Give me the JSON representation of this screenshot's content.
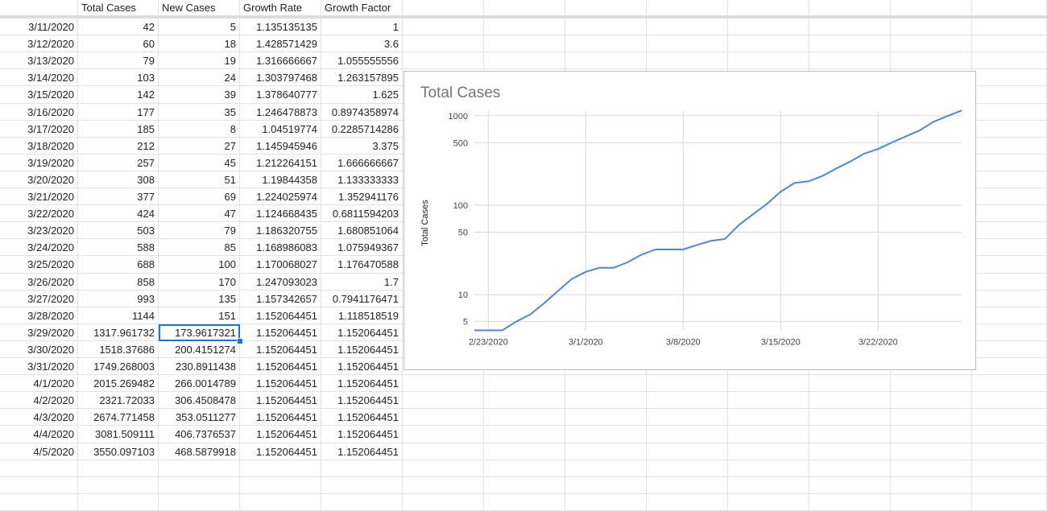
{
  "columns": {
    "headers": [
      "",
      "Total Cases",
      "New Cases",
      "Growth Rate",
      "Growth Factor"
    ]
  },
  "rows": [
    [
      "3/11/2020",
      "42",
      "5",
      "1.135135135",
      "1"
    ],
    [
      "3/12/2020",
      "60",
      "18",
      "1.428571429",
      "3.6"
    ],
    [
      "3/13/2020",
      "79",
      "19",
      "1.316666667",
      "1.055555556"
    ],
    [
      "3/14/2020",
      "103",
      "24",
      "1.303797468",
      "1.263157895"
    ],
    [
      "3/15/2020",
      "142",
      "39",
      "1.378640777",
      "1.625"
    ],
    [
      "3/16/2020",
      "177",
      "35",
      "1.246478873",
      "0.8974358974"
    ],
    [
      "3/17/2020",
      "185",
      "8",
      "1.04519774",
      "0.2285714286"
    ],
    [
      "3/18/2020",
      "212",
      "27",
      "1.145945946",
      "3.375"
    ],
    [
      "3/19/2020",
      "257",
      "45",
      "1.212264151",
      "1.666666667"
    ],
    [
      "3/20/2020",
      "308",
      "51",
      "1.19844358",
      "1.133333333"
    ],
    [
      "3/21/2020",
      "377",
      "69",
      "1.224025974",
      "1.352941176"
    ],
    [
      "3/22/2020",
      "424",
      "47",
      "1.124668435",
      "0.6811594203"
    ],
    [
      "3/23/2020",
      "503",
      "79",
      "1.186320755",
      "1.680851064"
    ],
    [
      "3/24/2020",
      "588",
      "85",
      "1.168986083",
      "1.075949367"
    ],
    [
      "3/25/2020",
      "688",
      "100",
      "1.170068027",
      "1.176470588"
    ],
    [
      "3/26/2020",
      "858",
      "170",
      "1.247093023",
      "1.7"
    ],
    [
      "3/27/2020",
      "993",
      "135",
      "1.157342657",
      "0.7941176471"
    ],
    [
      "3/28/2020",
      "1144",
      "151",
      "1.152064451",
      "1.118518519"
    ],
    [
      "3/29/2020",
      "1317.961732",
      "173.9617321",
      "1.152064451",
      "1.152064451"
    ],
    [
      "3/30/2020",
      "1518.37686",
      "200.4151274",
      "1.152064451",
      "1.152064451"
    ],
    [
      "3/31/2020",
      "1749.268003",
      "230.8911438",
      "1.152064451",
      "1.152064451"
    ],
    [
      "4/1/2020",
      "2015.269482",
      "266.0014789",
      "1.152064451",
      "1.152064451"
    ],
    [
      "4/2/2020",
      "2321.72033",
      "306.4508478",
      "1.152064451",
      "1.152064451"
    ],
    [
      "4/3/2020",
      "2674.771458",
      "353.0511277",
      "1.152064451",
      "1.152064451"
    ],
    [
      "4/4/2020",
      "3081.509111",
      "406.7376537",
      "1.152064451",
      "1.152064451"
    ],
    [
      "4/5/2020",
      "3550.097103",
      "468.5879918",
      "1.152064451",
      "1.152064451"
    ]
  ],
  "selected_cell": {
    "row": 18,
    "col": 2
  },
  "colors": {
    "line": "#4a86e8",
    "grid": "#d9d9d9",
    "selection": "#1a73e8",
    "title": "#757575"
  },
  "chart_data": {
    "type": "line",
    "title": "Total Cases",
    "xlabel": "",
    "ylabel": "Total Cases",
    "y_scale": "log",
    "ylim": [
      4,
      1200
    ],
    "xlim": [
      "2/22/2020",
      "3/28/2020"
    ],
    "x_ticks": [
      "2/23/2020",
      "3/1/2020",
      "3/8/2020",
      "3/15/2020",
      "3/22/2020"
    ],
    "y_ticks": [
      5,
      10,
      50,
      100,
      500,
      1000
    ],
    "series": [
      {
        "name": "",
        "x": [
          "2/22/2020",
          "2/23/2020",
          "2/24/2020",
          "2/25/2020",
          "2/26/2020",
          "2/27/2020",
          "2/28/2020",
          "2/29/2020",
          "3/1/2020",
          "3/2/2020",
          "3/3/2020",
          "3/4/2020",
          "3/5/2020",
          "3/6/2020",
          "3/7/2020",
          "3/8/2020",
          "3/9/2020",
          "3/10/2020",
          "3/11/2020",
          "3/12/2020",
          "3/13/2020",
          "3/14/2020",
          "3/15/2020",
          "3/16/2020",
          "3/17/2020",
          "3/18/2020",
          "3/19/2020",
          "3/20/2020",
          "3/21/2020",
          "3/22/2020",
          "3/23/2020",
          "3/24/2020",
          "3/25/2020",
          "3/26/2020",
          "3/27/2020",
          "3/28/2020"
        ],
        "values": [
          4,
          4,
          4,
          5,
          6,
          8,
          11,
          15,
          18,
          20,
          20,
          23,
          28,
          32,
          32,
          32,
          36,
          40,
          42,
          60,
          79,
          103,
          142,
          177,
          185,
          212,
          257,
          308,
          377,
          424,
          503,
          588,
          688,
          858,
          993,
          1144
        ]
      }
    ]
  }
}
